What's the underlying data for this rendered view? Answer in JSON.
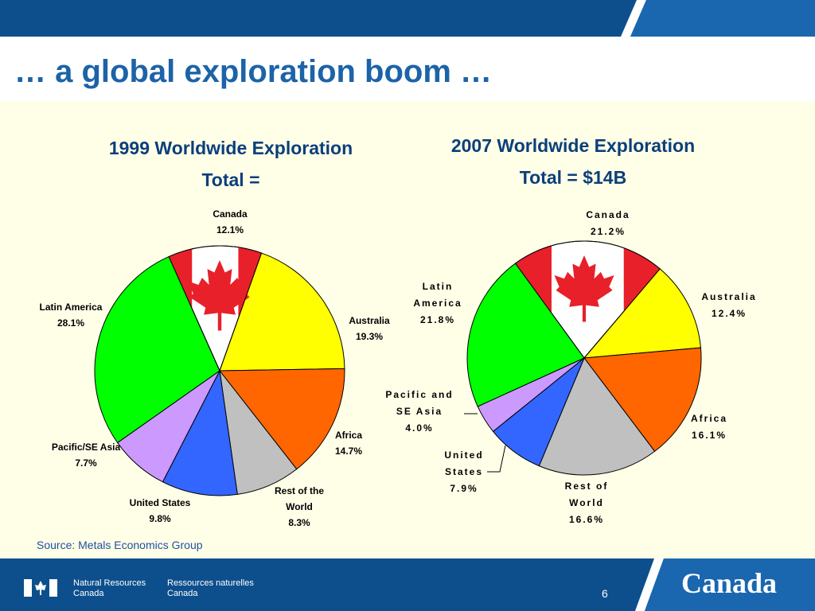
{
  "slide": {
    "title": "… a global exploration boom …",
    "source": "Source: Metals Economics Group",
    "page_number": "6"
  },
  "footer": {
    "dept_en_line1": "Natural Resources",
    "dept_en_line2": "Canada",
    "dept_fr_line1": "Ressources naturelles",
    "dept_fr_line2": "Canada",
    "wordmark": "Canada"
  },
  "colors": {
    "header_bar": "#0d4f8c",
    "title": "#1c63a8",
    "chart_title": "#0b3f7a",
    "content_bg": "#ffffe8",
    "canada": "#ffffff",
    "australia": "#ffff00",
    "africa": "#ff6600",
    "rest_of_world": "#c0c0c0",
    "united_states": "#3366ff",
    "pacific_se_asia": "#cc99ff",
    "latin_america": "#00ff00",
    "flag_red": "#e8202a"
  },
  "chart_data": [
    {
      "type": "pie",
      "title_line1": "1999 Worldwide Exploration",
      "title_line2": "Total =",
      "slices": [
        {
          "label": "Canada",
          "value": 12.1,
          "value_text": "12.1%"
        },
        {
          "label": "Australia",
          "value": 19.3,
          "value_text": "19.3%"
        },
        {
          "label": "Africa",
          "value": 14.7,
          "value_text": "14.7%"
        },
        {
          "label": "Rest of the World",
          "value": 8.3,
          "value_text": "8.3%"
        },
        {
          "label": "United States",
          "value": 9.8,
          "value_text": "9.8%"
        },
        {
          "label": "Pacific/SE Asia",
          "value": 7.7,
          "value_text": "7.7%"
        },
        {
          "label": "Latin America",
          "value": 28.1,
          "value_text": "28.1%"
        }
      ]
    },
    {
      "type": "pie",
      "title_line1": "2007 Worldwide Exploration",
      "title_line2": "Total = $14B",
      "slices": [
        {
          "label": "Canada",
          "value": 21.2,
          "value_text": "21.2%"
        },
        {
          "label": "Australia",
          "value": 12.4,
          "value_text": "12.4%"
        },
        {
          "label": "Africa",
          "value": 16.1,
          "value_text": "16.1%"
        },
        {
          "label": "Rest of World",
          "value": 16.6,
          "value_text": "16.6%"
        },
        {
          "label": "United States",
          "value": 7.9,
          "value_text": "7.9%"
        },
        {
          "label": "Pacific and SE Asia",
          "value": 4.0,
          "value_text": "4.0%"
        },
        {
          "label": "Latin America",
          "value": 21.8,
          "value_text": "21.8%"
        }
      ]
    }
  ]
}
